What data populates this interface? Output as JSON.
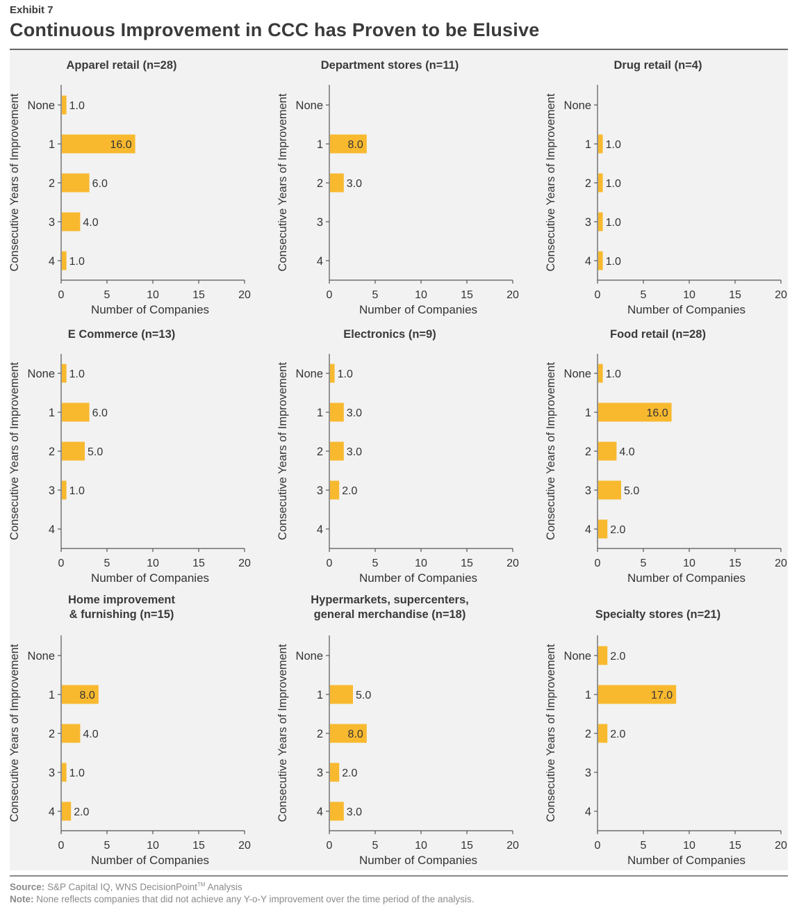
{
  "header": {
    "exhibit": "Exhibit 7",
    "title": "Continuous Improvement in CCC has Proven to be Elusive"
  },
  "footer": {
    "source_label": "Source:",
    "source_text": "S&P Capital IQ, WNS DecisionPoint",
    "source_tm": "TM",
    "source_tail": " Analysis",
    "note_label": "Note:",
    "note_text": "None reflects companies that did not achieve any Y-o-Y improvement over the time period of the analysis."
  },
  "colors": {
    "bar": "#F8B92F",
    "axis": "#555555",
    "text": "#333333"
  },
  "chart_data": [
    {
      "type": "bar",
      "orientation": "horizontal",
      "title": [
        "Apparel retail (n=28)"
      ],
      "xlabel": "Number of Companies",
      "ylabel": "Consecutive Years of Improvement",
      "xlim": [
        0,
        20
      ],
      "xticks": [
        "0",
        "5",
        "10",
        "15",
        "20"
      ],
      "categories": [
        "None",
        "1",
        "2",
        "3",
        "4"
      ],
      "values": [
        1.0,
        16.0,
        6.0,
        4.0,
        1.0
      ]
    },
    {
      "type": "bar",
      "orientation": "horizontal",
      "title": [
        "Department stores (n=11)"
      ],
      "xlabel": "Number of Companies",
      "ylabel": "Consecutive Years of Improvement",
      "xlim": [
        0,
        20
      ],
      "xticks": [
        "0",
        "5",
        "10",
        "15",
        "20"
      ],
      "categories": [
        "None",
        "1",
        "2",
        "3",
        "4"
      ],
      "values": [
        null,
        8.0,
        3.0,
        null,
        null
      ]
    },
    {
      "type": "bar",
      "orientation": "horizontal",
      "title": [
        "Drug retail (n=4)"
      ],
      "xlabel": "Number of Companies",
      "ylabel": "Consecutive Years of Improvement",
      "xlim": [
        0,
        20
      ],
      "xticks": [
        "0",
        "5",
        "10",
        "15",
        "20"
      ],
      "categories": [
        "None",
        "1",
        "2",
        "3",
        "4"
      ],
      "values": [
        null,
        1.0,
        1.0,
        1.0,
        1.0
      ]
    },
    {
      "type": "bar",
      "orientation": "horizontal",
      "title": [
        "E Commerce (n=13)"
      ],
      "xlabel": "Number of Companies",
      "ylabel": "Consecutive Years of Improvement",
      "xlim": [
        0,
        20
      ],
      "xticks": [
        "0",
        "5",
        "10",
        "15",
        "20"
      ],
      "categories": [
        "None",
        "1",
        "2",
        "3",
        "4"
      ],
      "values": [
        1.0,
        6.0,
        5.0,
        1.0,
        null
      ]
    },
    {
      "type": "bar",
      "orientation": "horizontal",
      "title": [
        "Electronics (n=9)"
      ],
      "xlabel": "Number of Companies",
      "ylabel": "Consecutive Years of Improvement",
      "xlim": [
        0,
        20
      ],
      "xticks": [
        "0",
        "5",
        "10",
        "15",
        "20"
      ],
      "categories": [
        "None",
        "1",
        "2",
        "3",
        "4"
      ],
      "values": [
        1.0,
        3.0,
        3.0,
        2.0,
        null
      ]
    },
    {
      "type": "bar",
      "orientation": "horizontal",
      "title": [
        "Food retail (n=28)"
      ],
      "xlabel": "Number of Companies",
      "ylabel": "Consecutive Years of Improvement",
      "xlim": [
        0,
        20
      ],
      "xticks": [
        "0",
        "5",
        "10",
        "15",
        "20"
      ],
      "categories": [
        "None",
        "1",
        "2",
        "3",
        "4"
      ],
      "values": [
        1.0,
        16.0,
        4.0,
        5.0,
        2.0
      ]
    },
    {
      "type": "bar",
      "orientation": "horizontal",
      "title": [
        "Home improvement",
        "& furnishing (n=15)"
      ],
      "xlabel": "Number of Companies",
      "ylabel": "Consecutive Years of Improvement",
      "xlim": [
        0,
        20
      ],
      "xticks": [
        "0",
        "5",
        "10",
        "15",
        "20"
      ],
      "categories": [
        "None",
        "1",
        "2",
        "3",
        "4"
      ],
      "values": [
        null,
        8.0,
        4.0,
        1.0,
        2.0
      ]
    },
    {
      "type": "bar",
      "orientation": "horizontal",
      "title": [
        "Hypermarkets, supercenters,",
        "general merchandise (n=18)"
      ],
      "xlabel": "Number of Companies",
      "ylabel": "Consecutive Years of Improvement",
      "xlim": [
        0,
        20
      ],
      "xticks": [
        "0",
        "5",
        "10",
        "15",
        "20"
      ],
      "categories": [
        "None",
        "1",
        "2",
        "3",
        "4"
      ],
      "values": [
        null,
        5.0,
        8.0,
        2.0,
        3.0
      ]
    },
    {
      "type": "bar",
      "orientation": "horizontal",
      "title": [
        "Specialty stores (n=21)"
      ],
      "xlabel": "Number of Companies",
      "ylabel": "Consecutive Years of Improvement",
      "xlim": [
        0,
        20
      ],
      "xticks": [
        "0",
        "5",
        "10",
        "15",
        "20"
      ],
      "categories": [
        "None",
        "1",
        "2",
        "3",
        "4"
      ],
      "values": [
        2.0,
        17.0,
        2.0,
        null,
        null
      ]
    }
  ]
}
